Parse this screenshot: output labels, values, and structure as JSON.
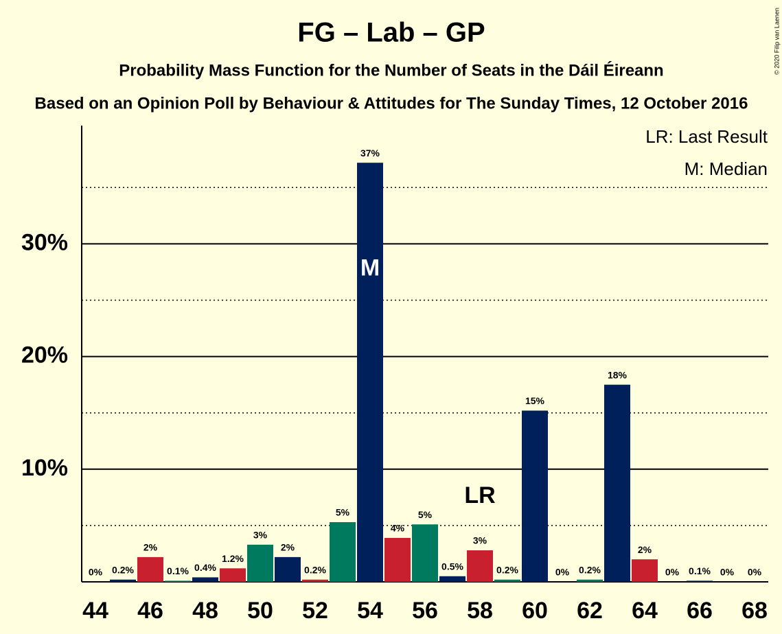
{
  "chart_data": {
    "type": "bar",
    "title": "FG – Lab – GP",
    "subtitle": "Probability Mass Function for the Number of Seats in the Dáil Éireann",
    "subtitle2": "Based on an Opinion Poll by Behaviour & Attitudes for The Sunday Times, 12 October 2016",
    "copyright": "© 2020 Filip van Laenen",
    "legend": [
      "LR: Last Result",
      "M: Median"
    ],
    "legend_position": "top-right",
    "x": [
      44,
      45,
      46,
      47,
      48,
      49,
      50,
      51,
      52,
      53,
      54,
      55,
      56,
      57,
      58,
      59,
      60,
      61,
      62,
      63,
      64,
      65,
      66,
      67,
      68
    ],
    "values": [
      0,
      0.2,
      2.2,
      0.1,
      0.4,
      1.2,
      3.3,
      2.2,
      0.2,
      5.3,
      37.2,
      3.9,
      5.1,
      0.5,
      2.8,
      0.2,
      15.2,
      0,
      0.2,
      17.5,
      2.0,
      0,
      0.1,
      0,
      0
    ],
    "value_labels": [
      "0%",
      "0.2%",
      "2%",
      "0.1%",
      "0.4%",
      "1.2%",
      "3%",
      "2%",
      "0.2%",
      "5%",
      "37%",
      "4%",
      "5%",
      "0.5%",
      "3%",
      "0.2%",
      "15%",
      "0%",
      "0.2%",
      "18%",
      "2%",
      "0%",
      "0.1%",
      "0%",
      "0%"
    ],
    "colors": [
      "#007a5e",
      "#00205b",
      "#c8202f",
      "#007a5e",
      "#00205b",
      "#c8202f",
      "#007a5e",
      "#00205b",
      "#c8202f",
      "#007a5e",
      "#00205b",
      "#c8202f",
      "#007a5e",
      "#00205b",
      "#c8202f",
      "#007a5e",
      "#00205b",
      "#c8202f",
      "#007a5e",
      "#00205b",
      "#c8202f",
      "#007a5e",
      "#00205b",
      "#c8202f",
      "#007a5e"
    ],
    "xlim": [
      43.5,
      68.5
    ],
    "xticks": [
      44,
      46,
      48,
      50,
      52,
      54,
      56,
      58,
      60,
      62,
      64,
      66,
      68
    ],
    "ylim": [
      0,
      40.5
    ],
    "yticks": [
      {
        "value": 10,
        "label": "10%"
      },
      {
        "value": 20,
        "label": "20%"
      },
      {
        "value": 30,
        "label": "30%"
      }
    ],
    "minor_yticks": [
      5,
      15,
      25,
      35
    ],
    "grid": true,
    "annotations": [
      {
        "x": 54,
        "label": "M"
      },
      {
        "x": 58,
        "label": "LR"
      }
    ]
  }
}
